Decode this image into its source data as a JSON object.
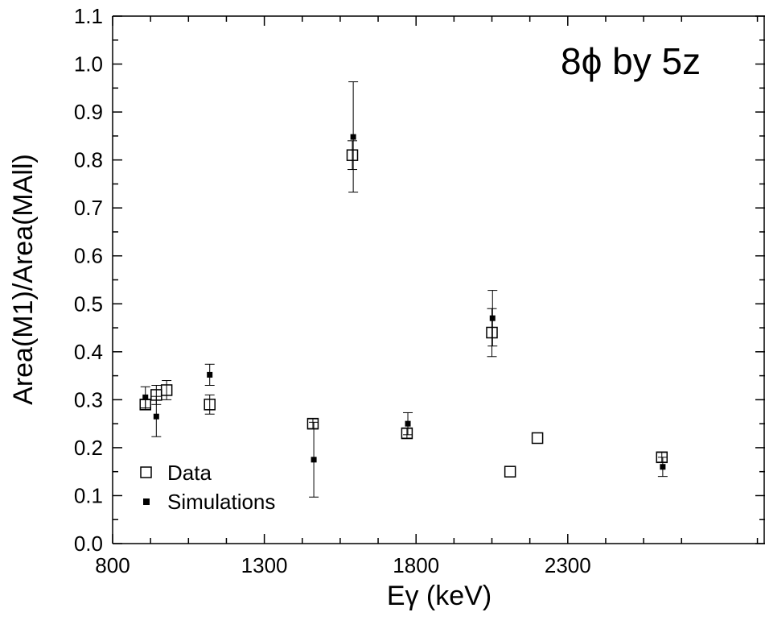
{
  "chart_data": {
    "type": "scatter",
    "xlabel": "Eγ (keV)",
    "ylabel": "Area(M1)/Area(MAll)",
    "annotation": "8ϕ by 5z",
    "xlim": [
      800,
      2950
    ],
    "ylim": [
      0.0,
      1.1
    ],
    "x_ticks": [
      800,
      1300,
      1800,
      2300
    ],
    "y_ticks": [
      0.0,
      0.1,
      0.2,
      0.3,
      0.4,
      0.5,
      0.6,
      0.7,
      0.8,
      0.9,
      1.0,
      1.1
    ],
    "legend_position": "bottom-left",
    "grid": false,
    "series": [
      {
        "name": "Data",
        "marker": "open-square",
        "points": [
          {
            "x": 908,
            "y": 0.29,
            "err": 0.01
          },
          {
            "x": 944,
            "y": 0.31,
            "err": 0.02
          },
          {
            "x": 978,
            "y": 0.32,
            "err": 0.02
          },
          {
            "x": 1120,
            "y": 0.29,
            "err": 0.02
          },
          {
            "x": 1460,
            "y": 0.25,
            "err": 0.01
          },
          {
            "x": 1590,
            "y": 0.81,
            "err": 0.03
          },
          {
            "x": 1770,
            "y": 0.23,
            "err": 0.01
          },
          {
            "x": 2050,
            "y": 0.44,
            "err": 0.05
          },
          {
            "x": 2110,
            "y": 0.15,
            "err": 0
          },
          {
            "x": 2200,
            "y": 0.22,
            "err": 0
          },
          {
            "x": 2610,
            "y": 0.18,
            "err": 0.01
          }
        ]
      },
      {
        "name": "Simulations",
        "marker": "filled-square",
        "points": [
          {
            "x": 908,
            "y": 0.305,
            "err": 0.022
          },
          {
            "x": 944,
            "y": 0.265,
            "err": 0.042
          },
          {
            "x": 1120,
            "y": 0.352,
            "err": 0.022
          },
          {
            "x": 1463,
            "y": 0.175,
            "err": 0.078
          },
          {
            "x": 1593,
            "y": 0.848,
            "err": 0.115
          },
          {
            "x": 1773,
            "y": 0.25,
            "err": 0.023
          },
          {
            "x": 2052,
            "y": 0.47,
            "err": 0.058
          },
          {
            "x": 2613,
            "y": 0.16,
            "err": 0.02
          }
        ]
      }
    ]
  }
}
